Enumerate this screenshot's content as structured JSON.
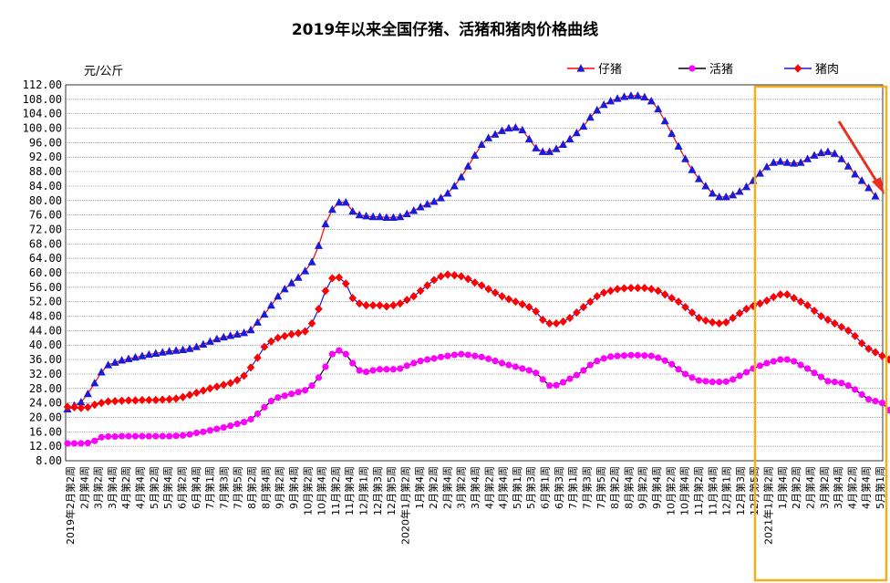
{
  "chart_data": {
    "type": "line",
    "title": "2019年以来全国仔猪、活猪和猪肉价格曲线",
    "ylabel": "元/公斤",
    "ylim": [
      8,
      112
    ],
    "yticks": [
      "8.00",
      "12.00",
      "16.00",
      "20.00",
      "24.00",
      "28.00",
      "32.00",
      "36.00",
      "40.00",
      "44.00",
      "48.00",
      "52.00",
      "56.00",
      "60.00",
      "64.00",
      "68.00",
      "72.00",
      "76.00",
      "80.00",
      "84.00",
      "88.00",
      "92.00",
      "96.00",
      "100.00",
      "104.00",
      "108.00",
      "112.00"
    ],
    "grid": true,
    "legend_position": "top-right",
    "x_labels_shown": [
      "2019年2月第2周",
      "2月第4周",
      "3月第2周",
      "3月第4周",
      "4月第2周",
      "4月第4周",
      "5月第2周",
      "5月第4周",
      "6月第2周",
      "6月第4周",
      "7月第1周",
      "7月第3周",
      "7月第5周",
      "8月第2周",
      "8月第4周",
      "9月第2周",
      "9月第4周",
      "10月第2周",
      "10月第4周",
      "11月第2周",
      "11月第4周",
      "12月第1周",
      "12月第3周",
      "12月第5周",
      "2020年1月第2周",
      "1月第4周",
      "2月第2周",
      "2月第4周",
      "3月第2周",
      "3月第4周",
      "4月第2周",
      "4月第4周",
      "5月第1周",
      "5月第3周",
      "6月第1周",
      "6月第3周",
      "7月第1周",
      "7月第3周",
      "7月第5周",
      "8月第2周",
      "8月第4周",
      "9月第2周",
      "9月第4周",
      "10月第2周",
      "10月第4周",
      "11月第2周",
      "11月第4周",
      "12月第1周",
      "12月第3周",
      "12月第5周",
      "2021年1月第2周",
      "1月第4周",
      "2月第2周",
      "2月第4周",
      "3月第2周",
      "3月第4周",
      "4月第2周",
      "4月第4周",
      "5月第1周"
    ],
    "series": [
      {
        "name": "仔猪",
        "color": "#1a1ad9",
        "line_color": "#ff0000",
        "marker": "triangle",
        "values": [
          22.3,
          23.3,
          24.2,
          26.5,
          29.5,
          32.5,
          34.5,
          35.2,
          35.8,
          36.2,
          36.6,
          37.0,
          37.4,
          37.7,
          38.0,
          38.3,
          38.5,
          38.7,
          39.0,
          39.5,
          40.2,
          41.0,
          41.7,
          42.2,
          42.6,
          43.0,
          43.4,
          44.2,
          46.3,
          48.5,
          51.0,
          53.5,
          55.5,
          57.2,
          58.7,
          60.5,
          63.0,
          67.5,
          73.5,
          77.5,
          79.5,
          79.5,
          77.0,
          76.0,
          75.7,
          75.5,
          75.5,
          75.3,
          75.3,
          75.5,
          76.3,
          77.2,
          78.2,
          79.0,
          79.7,
          80.7,
          82.0,
          84.0,
          86.5,
          89.5,
          92.5,
          95.5,
          97.3,
          98.3,
          99.3,
          100.0,
          100.2,
          99.5,
          97.0,
          94.5,
          93.5,
          93.5,
          94.3,
          95.5,
          97.0,
          98.7,
          100.5,
          103.0,
          105.0,
          106.5,
          107.5,
          108.2,
          108.7,
          109.0,
          109.0,
          108.6,
          107.5,
          105.3,
          102.0,
          98.5,
          95.0,
          91.5,
          88.5,
          86.0,
          84.0,
          82.0,
          81.0,
          81.0,
          81.5,
          82.5,
          83.8,
          85.5,
          87.5,
          89.3,
          90.5,
          90.8,
          90.5,
          90.3,
          90.5,
          91.5,
          92.5,
          93.2,
          93.5,
          93.0,
          91.5,
          89.5,
          87.3,
          85.5,
          83.5,
          81.2
        ]
      },
      {
        "name": "活猪",
        "color": "#ff00ff",
        "line_color": "#000000",
        "marker": "circle",
        "values": [
          12.8,
          12.8,
          12.8,
          12.9,
          13.5,
          14.5,
          14.7,
          14.7,
          14.8,
          14.8,
          14.8,
          14.8,
          14.8,
          14.8,
          14.8,
          14.8,
          14.9,
          15.0,
          15.3,
          15.7,
          16.0,
          16.4,
          16.8,
          17.2,
          17.7,
          18.2,
          18.7,
          19.5,
          21.0,
          22.8,
          24.5,
          25.5,
          26.0,
          26.5,
          27.0,
          27.5,
          28.8,
          31.0,
          34.0,
          37.5,
          38.5,
          37.5,
          35.0,
          33.0,
          32.6,
          33.0,
          33.3,
          33.3,
          33.3,
          33.5,
          34.3,
          35.0,
          35.6,
          36.0,
          36.3,
          36.7,
          37.0,
          37.3,
          37.5,
          37.3,
          37.0,
          36.7,
          36.2,
          35.6,
          35.0,
          34.5,
          34.0,
          33.5,
          33.0,
          32.3,
          30.5,
          28.8,
          28.9,
          29.7,
          30.7,
          31.7,
          33.0,
          34.5,
          35.6,
          36.3,
          36.8,
          37.0,
          37.1,
          37.2,
          37.2,
          37.1,
          37.0,
          36.5,
          35.7,
          34.7,
          33.3,
          32.0,
          31.0,
          30.2,
          30.0,
          29.8,
          29.8,
          29.9,
          30.5,
          31.5,
          32.5,
          33.5,
          34.3,
          35.0,
          35.5,
          36.0,
          36.0,
          35.5,
          34.5,
          33.5,
          32.3,
          31.2,
          30.0,
          29.8,
          29.5,
          28.8,
          27.7,
          26.3,
          25.0,
          24.5,
          24.0,
          22.0
        ]
      },
      {
        "name": "猪肉",
        "color": "#ff0000",
        "line_color": "#1a1ad9",
        "marker": "diamond",
        "values": [
          22.9,
          22.8,
          22.6,
          22.8,
          23.5,
          24.0,
          24.4,
          24.5,
          24.6,
          24.7,
          24.7,
          24.8,
          24.8,
          24.8,
          24.9,
          25.0,
          25.2,
          25.6,
          26.2,
          26.8,
          27.4,
          28.0,
          28.5,
          29.0,
          29.5,
          30.3,
          31.5,
          33.8,
          36.5,
          39.5,
          41.0,
          42.0,
          42.5,
          43.0,
          43.3,
          43.8,
          46.0,
          50.0,
          55.0,
          58.5,
          58.7,
          57.0,
          53.0,
          51.5,
          51.0,
          51.0,
          51.0,
          50.7,
          51.0,
          51.5,
          52.5,
          53.5,
          55.0,
          56.5,
          58.0,
          59.0,
          59.5,
          59.3,
          59.0,
          58.3,
          57.3,
          56.5,
          55.5,
          54.5,
          53.5,
          52.7,
          52.0,
          51.3,
          50.5,
          49.3,
          47.0,
          46.0,
          46.0,
          46.5,
          47.5,
          49.0,
          50.5,
          52.0,
          53.5,
          54.5,
          55.0,
          55.5,
          55.7,
          55.8,
          55.8,
          55.8,
          55.5,
          55.0,
          54.0,
          53.0,
          52.0,
          50.5,
          49.0,
          47.5,
          46.8,
          46.3,
          46.0,
          46.3,
          47.5,
          48.8,
          50.0,
          50.8,
          51.5,
          52.3,
          53.3,
          54.0,
          54.0,
          53.0,
          52.0,
          51.0,
          49.5,
          48.0,
          47.0,
          46.0,
          45.0,
          44.0,
          42.5,
          40.5,
          39.0,
          38.0,
          37.0,
          36.0
        ]
      }
    ]
  }
}
